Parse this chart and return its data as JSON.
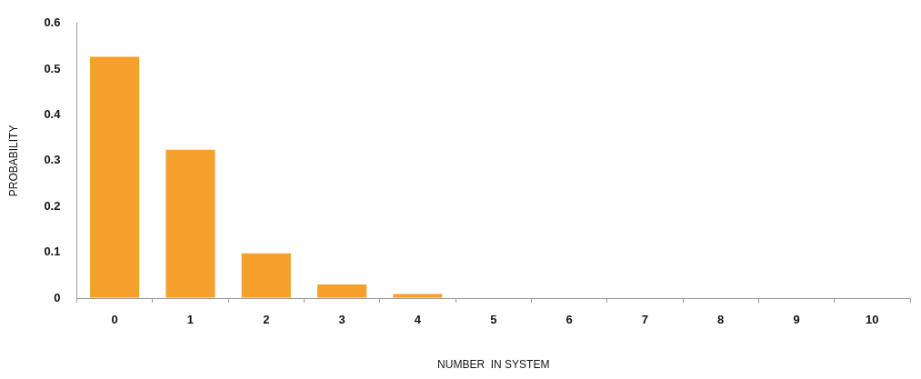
{
  "chart_data": {
    "type": "bar",
    "xlabel": "NUMBER  IN SYSTEM",
    "ylabel": "PROBABILITY",
    "categories": [
      "0",
      "1",
      "2",
      "3",
      "4",
      "5",
      "6",
      "7",
      "8",
      "9",
      "10"
    ],
    "values": [
      0.527,
      0.324,
      0.098,
      0.03,
      0.009,
      0,
      0,
      0,
      0,
      0,
      0
    ],
    "color": "#f5a02c",
    "ylim": [
      0,
      0.6
    ],
    "yticks": [
      0,
      0.1,
      0.2,
      0.3,
      0.4,
      0.5,
      0.6
    ],
    "grid": false,
    "legend": false
  }
}
